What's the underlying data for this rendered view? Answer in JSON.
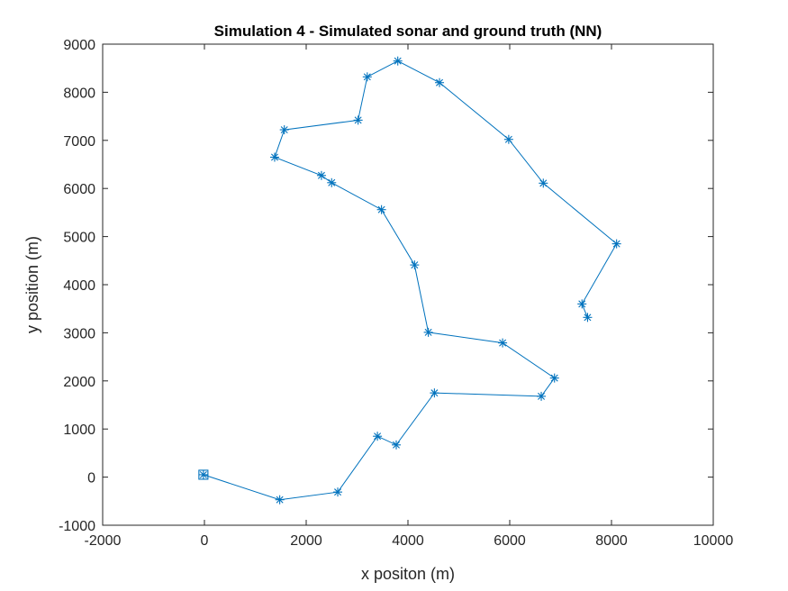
{
  "chart_data": {
    "type": "scatter",
    "title": "Simulation 4 - Simulated sonar and ground truth (NN)",
    "xlabel": "x positon (m)",
    "ylabel": "y position (m)",
    "xlim": [
      -2000,
      10000
    ],
    "ylim": [
      -1000,
      9000
    ],
    "xticks": [
      -2000,
      0,
      2000,
      4000,
      6000,
      8000,
      10000
    ],
    "yticks": [
      -1000,
      0,
      1000,
      2000,
      3000,
      4000,
      5000,
      6000,
      7000,
      8000,
      9000
    ],
    "xtick_labels": [
      "-2000",
      "0",
      "2000",
      "4000",
      "6000",
      "8000",
      "10000"
    ],
    "ytick_labels": [
      "-1000",
      "0",
      "1000",
      "2000",
      "3000",
      "4000",
      "5000",
      "6000",
      "7000",
      "8000",
      "9000"
    ],
    "grid": false,
    "series_color": "#0072BD",
    "start_marker": {
      "x": -20,
      "y": 50,
      "shape": "square"
    },
    "series": [
      {
        "marker": "asterisk",
        "x": [
          -20,
          1480,
          2620,
          3400,
          3770,
          4520,
          6620,
          6880,
          5860,
          4400,
          4130,
          3480,
          2500,
          2300,
          1380,
          1570,
          3020,
          3200,
          3800,
          4620,
          5980,
          6660,
          8100,
          7420,
          7530
        ],
        "y": [
          50,
          -470,
          -310,
          850,
          670,
          1750,
          1680,
          2060,
          2790,
          3010,
          4410,
          5560,
          6120,
          6270,
          6650,
          7220,
          7420,
          8320,
          8650,
          8200,
          7020,
          6110,
          4850,
          3600,
          3320
        ]
      }
    ]
  }
}
